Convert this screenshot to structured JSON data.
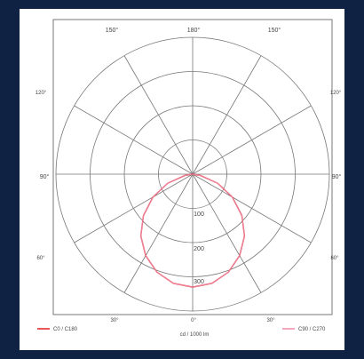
{
  "chart_data": {
    "type": "polar",
    "title": "",
    "angle_labels": {
      "a150_left": "150°",
      "a180": "180°",
      "a150_right": "150°",
      "a120_left": "120°",
      "a120_right": "120°",
      "a90_left": "90°",
      "a90_right": "90°",
      "a60_left": "60°",
      "a60_right": "60°",
      "a30_left": "30°",
      "a0": "0°",
      "a30_right": "30°"
    },
    "radial_ticks": [
      "100",
      "200",
      "300"
    ],
    "radial_max": 400,
    "radial_unit_label": "cd / 1000 lm",
    "series": [
      {
        "name": "C0 / C180",
        "color": "#e02020",
        "gamma": [
          0,
          10,
          20,
          30,
          40,
          50,
          60,
          70,
          80,
          90
        ],
        "intensity": [
          330,
          324,
          305,
          275,
          236,
          188,
          134,
          78,
          24,
          0
        ]
      },
      {
        "name": "C90 / C270",
        "color": "#f08aa8",
        "gamma": [
          0,
          10,
          20,
          30,
          40,
          50,
          60,
          70,
          80,
          90
        ],
        "intensity": [
          330,
          324,
          305,
          275,
          236,
          188,
          134,
          78,
          24,
          0
        ]
      }
    ]
  },
  "legend": {
    "left_label": "C0 / C180",
    "right_label": "C90 / C270"
  }
}
